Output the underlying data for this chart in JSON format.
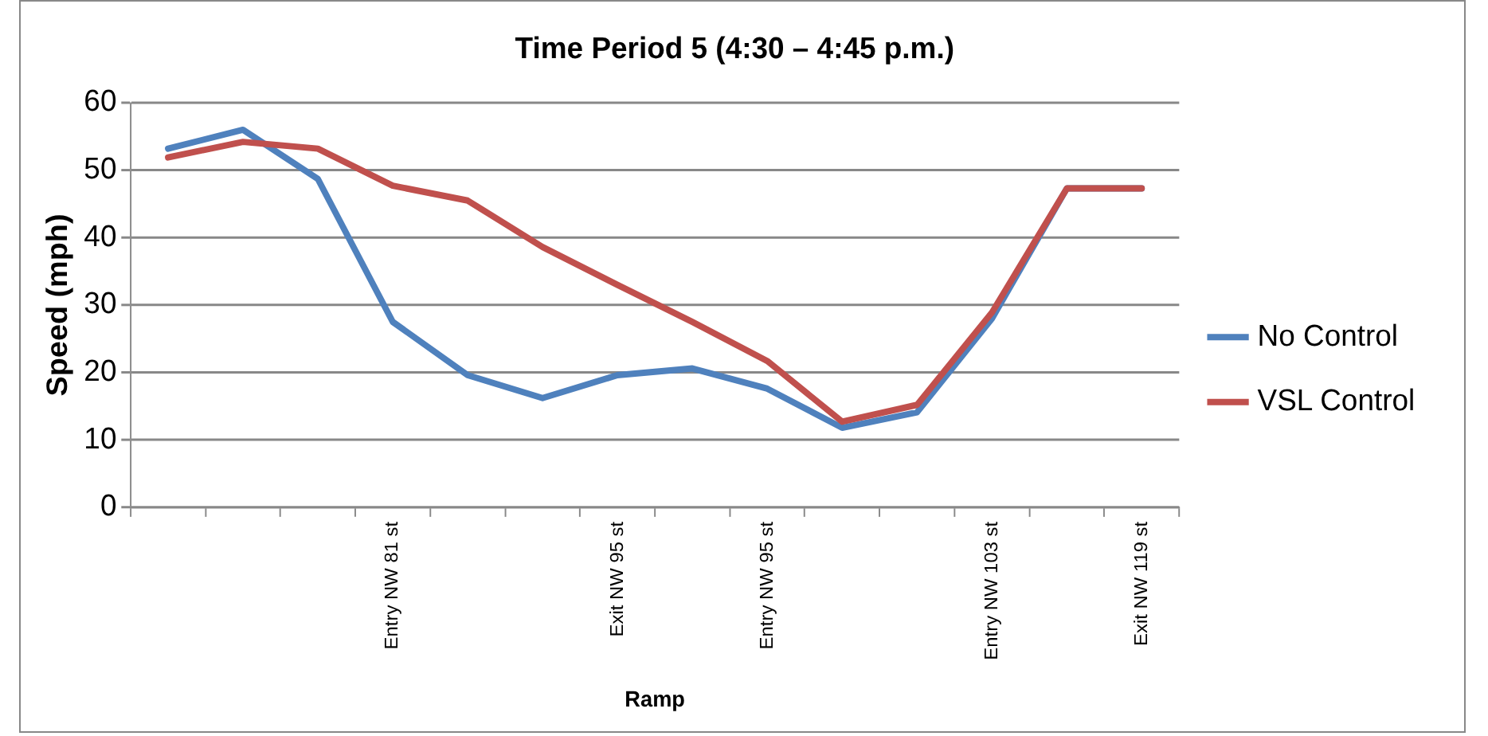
{
  "chart_data": {
    "type": "line",
    "title": "Time Period 5 (4:30 – 4:45 p.m.)",
    "xlabel": "Ramp",
    "ylabel": "Speed (mph)",
    "categories": [
      null,
      null,
      null,
      "Entry NW 81 st",
      null,
      null,
      "Exit NW 95 st",
      null,
      "Entry NW 95 st",
      null,
      null,
      "Entry NW 103 st",
      null,
      "Exit NW 119 st"
    ],
    "series": [
      {
        "name": "No Control",
        "color": "#4f81bd",
        "values": [
          53.2,
          56,
          48.7,
          27.5,
          19.6,
          16.2,
          19.6,
          20.6,
          17.6,
          11.8,
          14.1,
          28,
          47.3,
          47.3
        ]
      },
      {
        "name": "VSL Control",
        "color": "#c0504d",
        "values": [
          51.9,
          54.2,
          53.2,
          47.7,
          45.5,
          38.6,
          33,
          27.5,
          21.7,
          12.7,
          15.2,
          28.9,
          47.3,
          47.3
        ]
      }
    ],
    "ylim": [
      0,
      60
    ],
    "yticks": [
      0,
      10,
      20,
      30,
      40,
      50,
      60
    ],
    "grid": "y",
    "legend": "right",
    "marker": "none",
    "line_style": "solid"
  }
}
